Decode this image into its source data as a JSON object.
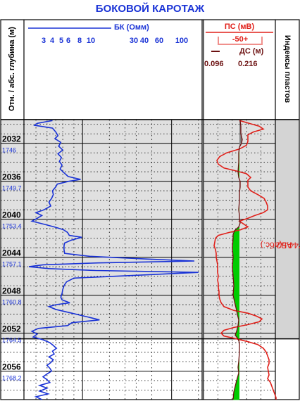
{
  "title": "БОКОВОЙ КАРОТАЖ",
  "depth_header": "Отн. / абс. глубина (м)",
  "index_header": "Индексы пластов",
  "colors": {
    "title": "#1a33d6",
    "bk": "#1a33d6",
    "ps": "#e0201a",
    "ds": "#6b1010",
    "fill_green": "#00cc00",
    "fill_gray": "#808080",
    "band": "#e0e0e0"
  },
  "bk_header": {
    "name": "БК (Омм)",
    "ticks": [
      "3",
      "4",
      "5",
      "6",
      "8",
      "10",
      "30",
      "40",
      "60",
      "100"
    ]
  },
  "ps_header": {
    "name": "ПС (мВ)",
    "scale": "-50+"
  },
  "ds_header": {
    "name": "ДС (м)",
    "min": "0.096",
    "max": "0.216"
  },
  "layer": {
    "line1": "АВ2",
    "line2": "1744.5(абс.)"
  },
  "depth_labels": [
    {
      "md": "2032",
      "tvd": "1746"
    },
    {
      "md": "2036",
      "tvd": "1749.7"
    },
    {
      "md": "2040",
      "tvd": "1753.4"
    },
    {
      "md": "2044",
      "tvd": "1757.1"
    },
    {
      "md": "2048",
      "tvd": "1760.8"
    },
    {
      "md": "2052",
      "tvd": "1764.5"
    },
    {
      "md": "2056",
      "tvd": "1768.2"
    }
  ],
  "chart_data": {
    "type": "line",
    "depth_range": [
      2029.5,
      2059
    ],
    "layer_interval": [
      2029.5,
      2052.6
    ],
    "bk_scale": "log",
    "bk_range": [
      2.2,
      220
    ],
    "series": [
      {
        "name": "БК (Омм)",
        "points": [
          [
            2029.6,
            4.6
          ],
          [
            2029.9,
            3.1
          ],
          [
            2030.1,
            2.9
          ],
          [
            2030.4,
            4.6
          ],
          [
            2030.8,
            5.0
          ],
          [
            2031.2,
            5.3
          ],
          [
            2031.5,
            4.9
          ],
          [
            2031.9,
            5.7
          ],
          [
            2032.3,
            5.4
          ],
          [
            2032.7,
            6.0
          ],
          [
            2033.1,
            5.3
          ],
          [
            2033.5,
            5.8
          ],
          [
            2033.9,
            5.5
          ],
          [
            2034.3,
            5.9
          ],
          [
            2034.7,
            5.6
          ],
          [
            2035.1,
            6.2
          ],
          [
            2035.5,
            6.9
          ],
          [
            2035.8,
            9.5
          ],
          [
            2036.0,
            7.0
          ],
          [
            2036.3,
            5.2
          ],
          [
            2036.6,
            5.0
          ],
          [
            2037.0,
            4.6
          ],
          [
            2037.4,
            4.7
          ],
          [
            2037.8,
            4.5
          ],
          [
            2038.2,
            4.2
          ],
          [
            2038.6,
            4.4
          ],
          [
            2039.0,
            3.7
          ],
          [
            2039.3,
            3.0
          ],
          [
            2039.6,
            3.5
          ],
          [
            2039.9,
            3.1
          ],
          [
            2040.2,
            2.7
          ],
          [
            2040.5,
            3.6
          ],
          [
            2040.8,
            4.8
          ],
          [
            2041.1,
            6.1
          ],
          [
            2041.4,
            6.8
          ],
          [
            2041.7,
            7.1
          ],
          [
            2041.9,
            9.8
          ],
          [
            2042.2,
            7.5
          ],
          [
            2042.5,
            6.3
          ],
          [
            2042.8,
            6.2
          ],
          [
            2043.2,
            6.2
          ],
          [
            2043.6,
            6.3
          ],
          [
            2043.9,
            12
          ],
          [
            2044.2,
            55
          ],
          [
            2044.4,
            180
          ],
          [
            2044.6,
            15
          ],
          [
            2044.8,
            3.6
          ],
          [
            2045.0,
            2.5
          ],
          [
            2045.2,
            4.2
          ],
          [
            2045.4,
            14
          ],
          [
            2045.6,
            200
          ],
          [
            2045.9,
            40
          ],
          [
            2046.2,
            8
          ],
          [
            2046.6,
            6.6
          ],
          [
            2047.0,
            6.2
          ],
          [
            2047.4,
            6.0
          ],
          [
            2047.8,
            5.9
          ],
          [
            2048.2,
            5.7
          ],
          [
            2048.5,
            5.9
          ],
          [
            2048.8,
            7.2
          ],
          [
            2049.0,
            5.0
          ],
          [
            2049.2,
            4.2
          ],
          [
            2049.5,
            5.0
          ],
          [
            2049.9,
            7.6
          ],
          [
            2050.3,
            11.5
          ],
          [
            2050.6,
            15.5
          ],
          [
            2050.9,
            7.6
          ],
          [
            2051.2,
            6.8
          ],
          [
            2051.5,
            3.2
          ],
          [
            2051.8,
            2.7
          ],
          [
            2052.1,
            3.1
          ],
          [
            2052.4,
            2.8
          ],
          [
            2052.7,
            3.6
          ],
          [
            2053.0,
            4.3
          ],
          [
            2053.3,
            4.7
          ],
          [
            2053.6,
            5.1
          ],
          [
            2053.9,
            4.6
          ],
          [
            2054.2,
            4.8
          ],
          [
            2054.5,
            4.2
          ],
          [
            2054.8,
            4.7
          ],
          [
            2055.1,
            4.4
          ],
          [
            2055.4,
            4.0
          ],
          [
            2055.7,
            4.3
          ],
          [
            2056.0,
            4.5
          ],
          [
            2056.3,
            4.0
          ],
          [
            2056.6,
            3.6
          ],
          [
            2056.9,
            4.0
          ],
          [
            2057.2,
            4.3
          ],
          [
            2057.5,
            3.3
          ],
          [
            2057.8,
            4.0
          ],
          [
            2058.1,
            3.3
          ],
          [
            2058.4,
            4.1
          ],
          [
            2058.7,
            3.0
          ],
          [
            2059.0,
            3.5
          ]
        ]
      },
      {
        "name": "ПС (мВ)",
        "points": [
          [
            2029.6,
            340
          ],
          [
            2029.9,
            354
          ],
          [
            2030.2,
            368
          ],
          [
            2030.5,
            374
          ],
          [
            2030.8,
            360
          ],
          [
            2031.1,
            352
          ],
          [
            2031.4,
            352
          ],
          [
            2031.8,
            352
          ],
          [
            2032.2,
            350
          ],
          [
            2032.6,
            340
          ],
          [
            2033.0,
            322
          ],
          [
            2033.4,
            312
          ],
          [
            2033.8,
            308
          ],
          [
            2034.2,
            310
          ],
          [
            2034.6,
            318
          ],
          [
            2034.9,
            335
          ],
          [
            2035.2,
            350
          ],
          [
            2035.6,
            356
          ],
          [
            2035.9,
            352
          ],
          [
            2036.2,
            352
          ],
          [
            2036.6,
            352
          ],
          [
            2037.0,
            356
          ],
          [
            2037.4,
            366
          ],
          [
            2037.8,
            375
          ],
          [
            2038.2,
            378
          ],
          [
            2038.6,
            380
          ],
          [
            2039.0,
            380
          ],
          [
            2039.3,
            374
          ],
          [
            2039.6,
            362
          ],
          [
            2039.9,
            352
          ],
          [
            2040.2,
            340
          ],
          [
            2040.5,
            346
          ],
          [
            2040.8,
            352
          ],
          [
            2041.1,
            342
          ],
          [
            2041.4,
            325
          ],
          [
            2041.7,
            310
          ],
          [
            2042.0,
            306
          ],
          [
            2042.4,
            305
          ],
          [
            2042.8,
            304
          ],
          [
            2043.2,
            306
          ],
          [
            2043.6,
            307
          ],
          [
            2044.0,
            307
          ],
          [
            2044.4,
            308
          ],
          [
            2044.8,
            309
          ],
          [
            2045.2,
            309
          ],
          [
            2045.6,
            309
          ],
          [
            2046.0,
            310
          ],
          [
            2046.4,
            309
          ],
          [
            2046.8,
            310
          ],
          [
            2047.2,
            310
          ],
          [
            2047.6,
            311
          ],
          [
            2048.0,
            311
          ],
          [
            2048.4,
            312
          ],
          [
            2048.8,
            314
          ],
          [
            2049.2,
            318
          ],
          [
            2049.6,
            332
          ],
          [
            2049.9,
            352
          ],
          [
            2050.2,
            364
          ],
          [
            2050.5,
            372
          ],
          [
            2050.8,
            368
          ],
          [
            2051.1,
            352
          ],
          [
            2051.4,
            332
          ],
          [
            2051.7,
            318
          ],
          [
            2052.0,
            314
          ],
          [
            2052.3,
            318
          ],
          [
            2052.6,
            336
          ],
          [
            2052.9,
            352
          ],
          [
            2053.2,
            366
          ],
          [
            2053.6,
            374
          ],
          [
            2054.0,
            378
          ],
          [
            2054.4,
            380
          ],
          [
            2054.8,
            382
          ],
          [
            2055.2,
            382
          ],
          [
            2055.6,
            380
          ],
          [
            2056.0,
            381
          ],
          [
            2056.4,
            382
          ],
          [
            2056.8,
            380
          ],
          [
            2057.2,
            384
          ],
          [
            2057.6,
            386
          ],
          [
            2058.0,
            388
          ],
          [
            2058.4,
            390
          ],
          [
            2058.8,
            392
          ],
          [
            2059.0,
            392
          ]
        ]
      },
      {
        "name": "ДС (м)",
        "points": [
          [
            2029.6,
            341
          ],
          [
            2030.2,
            342
          ],
          [
            2031.0,
            342
          ],
          [
            2031.6,
            344
          ],
          [
            2032.0,
            343
          ],
          [
            2032.4,
            340
          ],
          [
            2033.0,
            339
          ],
          [
            2034.0,
            339
          ],
          [
            2035.0,
            338
          ],
          [
            2035.6,
            339
          ],
          [
            2036.0,
            341
          ],
          [
            2036.6,
            341
          ],
          [
            2037.2,
            340
          ],
          [
            2038.0,
            340
          ],
          [
            2039.0,
            339
          ],
          [
            2039.6,
            340
          ],
          [
            2040.0,
            340
          ],
          [
            2040.4,
            341
          ],
          [
            2040.8,
            339
          ],
          [
            2041.2,
            333
          ],
          [
            2041.6,
            331
          ],
          [
            2042.0,
            331
          ],
          [
            2043.0,
            330
          ],
          [
            2044.0,
            331
          ],
          [
            2045.0,
            330
          ],
          [
            2046.0,
            331
          ],
          [
            2047.0,
            332
          ],
          [
            2048.0,
            331
          ],
          [
            2049.0,
            334
          ],
          [
            2049.6,
            336
          ],
          [
            2050.0,
            337
          ],
          [
            2050.6,
            339
          ],
          [
            2051.2,
            338
          ],
          [
            2051.8,
            336
          ],
          [
            2052.2,
            334
          ],
          [
            2052.6,
            338
          ],
          [
            2053.0,
            340
          ],
          [
            2054.0,
            340
          ],
          [
            2055.0,
            339
          ],
          [
            2055.6,
            338
          ],
          [
            2056.2,
            339
          ],
          [
            2057.0,
            336
          ],
          [
            2057.6,
            334
          ],
          [
            2058.2,
            332
          ],
          [
            2059.0,
            331
          ]
        ]
      }
    ]
  }
}
